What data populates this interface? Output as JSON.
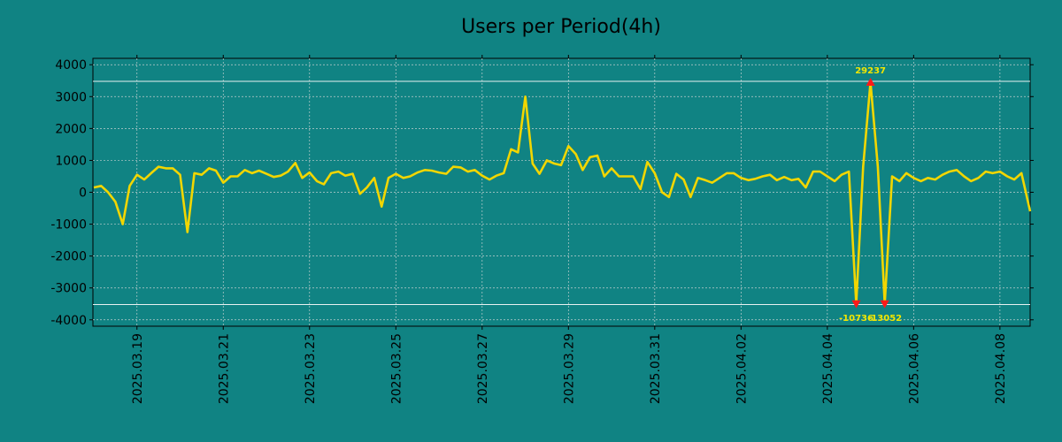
{
  "chart_data": {
    "type": "line",
    "title": "Users per Period(4h)",
    "xlabel": "",
    "ylabel": "",
    "ylim": [
      -4200,
      4200
    ],
    "yticks": [
      4000,
      3000,
      2000,
      1000,
      0,
      -1000,
      -2000,
      -3000,
      -4000
    ],
    "ytick_labels": [
      "4000",
      "3000",
      "2000",
      "1000",
      "0",
      "-1000",
      "-2000",
      "-3000",
      "-4000"
    ],
    "xlim_days": [
      0,
      21.7
    ],
    "xticks_days": [
      1,
      3,
      5,
      7,
      9,
      11,
      13,
      15,
      17,
      19,
      21
    ],
    "xtick_labels": [
      "2025.03.19",
      "2025.03.21",
      "2025.03.23",
      "2025.03.25",
      "2025.03.27",
      "2025.03.29",
      "2025.03.31",
      "2025.04.02",
      "2025.04.04",
      "2025.04.06",
      "2025.04.08"
    ],
    "grid": true,
    "hlines": [
      3480,
      -3520
    ],
    "line_color": "#f2d600",
    "marker_color": "#ff1a1a",
    "series": [
      {
        "name": "users",
        "points": [
          [
            0.0,
            150
          ],
          [
            0.17,
            200
          ],
          [
            0.33,
            0
          ],
          [
            0.5,
            -300
          ],
          [
            0.67,
            -1000
          ],
          [
            0.83,
            200
          ],
          [
            1.0,
            550
          ],
          [
            1.17,
            400
          ],
          [
            1.33,
            600
          ],
          [
            1.5,
            800
          ],
          [
            1.67,
            750
          ],
          [
            1.83,
            750
          ],
          [
            2.0,
            550
          ],
          [
            2.17,
            -1250
          ],
          [
            2.33,
            600
          ],
          [
            2.5,
            550
          ],
          [
            2.67,
            750
          ],
          [
            2.83,
            680
          ],
          [
            3.0,
            300
          ],
          [
            3.17,
            500
          ],
          [
            3.33,
            500
          ],
          [
            3.5,
            700
          ],
          [
            3.67,
            600
          ],
          [
            3.83,
            680
          ],
          [
            4.0,
            580
          ],
          [
            4.17,
            480
          ],
          [
            4.33,
            520
          ],
          [
            4.5,
            650
          ],
          [
            4.67,
            920
          ],
          [
            4.83,
            450
          ],
          [
            5.0,
            620
          ],
          [
            5.17,
            350
          ],
          [
            5.33,
            250
          ],
          [
            5.5,
            600
          ],
          [
            5.67,
            650
          ],
          [
            5.83,
            520
          ],
          [
            6.0,
            580
          ],
          [
            6.17,
            -50
          ],
          [
            6.33,
            150
          ],
          [
            6.5,
            450
          ],
          [
            6.67,
            -450
          ],
          [
            6.83,
            450
          ],
          [
            7.0,
            580
          ],
          [
            7.17,
            450
          ],
          [
            7.33,
            500
          ],
          [
            7.5,
            620
          ],
          [
            7.67,
            700
          ],
          [
            7.83,
            680
          ],
          [
            8.0,
            620
          ],
          [
            8.17,
            580
          ],
          [
            8.33,
            800
          ],
          [
            8.5,
            780
          ],
          [
            8.67,
            650
          ],
          [
            8.83,
            700
          ],
          [
            9.0,
            520
          ],
          [
            9.17,
            400
          ],
          [
            9.33,
            520
          ],
          [
            9.5,
            600
          ],
          [
            9.67,
            1350
          ],
          [
            9.83,
            1250
          ],
          [
            10.0,
            3000
          ],
          [
            10.17,
            900
          ],
          [
            10.33,
            580
          ],
          [
            10.5,
            1000
          ],
          [
            10.67,
            900
          ],
          [
            10.83,
            850
          ],
          [
            11.0,
            1450
          ],
          [
            11.17,
            1200
          ],
          [
            11.33,
            700
          ],
          [
            11.5,
            1100
          ],
          [
            11.67,
            1150
          ],
          [
            11.83,
            500
          ],
          [
            12.0,
            750
          ],
          [
            12.17,
            500
          ],
          [
            12.33,
            500
          ],
          [
            12.5,
            500
          ],
          [
            12.67,
            100
          ],
          [
            12.83,
            950
          ],
          [
            13.0,
            600
          ],
          [
            13.17,
            0
          ],
          [
            13.33,
            -150
          ],
          [
            13.5,
            580
          ],
          [
            13.67,
            400
          ],
          [
            13.83,
            -150
          ],
          [
            14.0,
            450
          ],
          [
            14.17,
            380
          ],
          [
            14.33,
            300
          ],
          [
            14.5,
            450
          ],
          [
            14.67,
            600
          ],
          [
            14.83,
            600
          ],
          [
            15.0,
            450
          ],
          [
            15.17,
            380
          ],
          [
            15.33,
            420
          ],
          [
            15.5,
            500
          ],
          [
            15.67,
            550
          ],
          [
            15.83,
            380
          ],
          [
            16.0,
            480
          ],
          [
            16.17,
            380
          ],
          [
            16.33,
            420
          ],
          [
            16.5,
            150
          ],
          [
            16.67,
            650
          ],
          [
            16.83,
            650
          ],
          [
            17.0,
            500
          ],
          [
            17.17,
            350
          ],
          [
            17.33,
            550
          ],
          [
            17.5,
            650
          ],
          [
            17.67,
            -3500
          ],
          [
            17.83,
            800
          ],
          [
            18.0,
            3450
          ],
          [
            18.17,
            800
          ],
          [
            18.33,
            -3500
          ],
          [
            18.5,
            500
          ],
          [
            18.67,
            350
          ],
          [
            18.83,
            600
          ],
          [
            19.0,
            450
          ],
          [
            19.17,
            350
          ],
          [
            19.33,
            450
          ],
          [
            19.5,
            400
          ],
          [
            19.67,
            550
          ],
          [
            19.83,
            650
          ],
          [
            20.0,
            700
          ],
          [
            20.17,
            500
          ],
          [
            20.33,
            350
          ],
          [
            20.5,
            450
          ],
          [
            20.67,
            650
          ],
          [
            20.83,
            600
          ],
          [
            21.0,
            650
          ],
          [
            21.17,
            500
          ],
          [
            21.33,
            400
          ],
          [
            21.5,
            600
          ],
          [
            21.7,
            -600
          ]
        ]
      }
    ],
    "annotations": [
      {
        "x": 17.67,
        "y": -3500,
        "label": "-10736",
        "marker": "down",
        "position": "below"
      },
      {
        "x": 18.0,
        "y": 3450,
        "label": "29237",
        "marker": "up",
        "position": "above"
      },
      {
        "x": 18.33,
        "y": -3500,
        "label": "-13052",
        "marker": "down",
        "position": "below"
      }
    ]
  }
}
